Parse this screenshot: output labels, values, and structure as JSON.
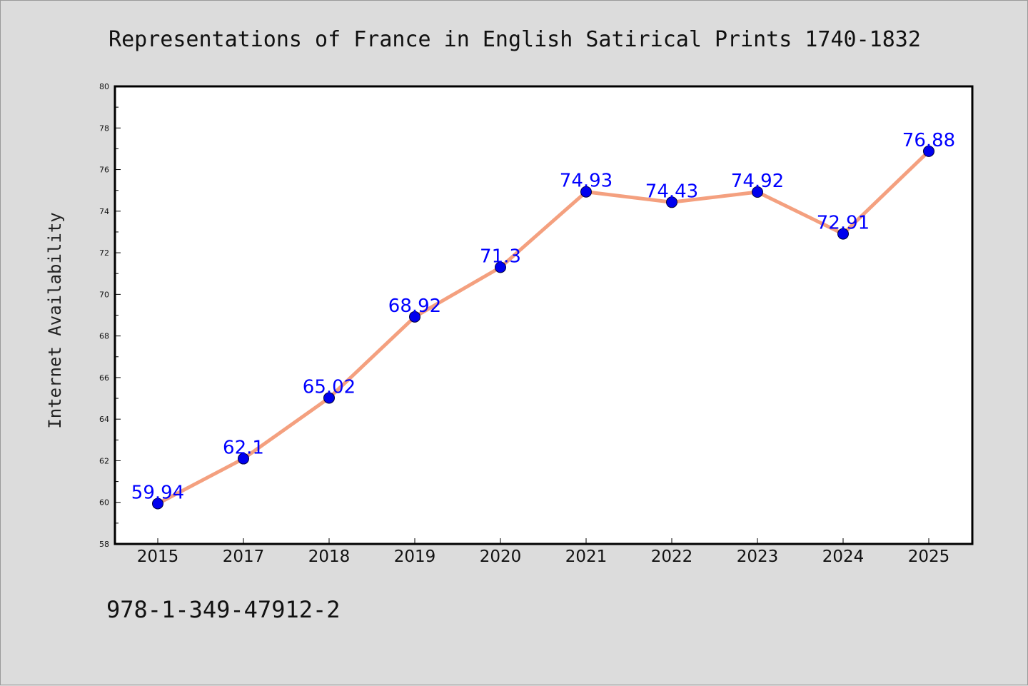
{
  "chart_data": {
    "type": "line",
    "title": "Representations of France in English Satirical Prints 1740-1832",
    "xlabel": "",
    "ylabel": "Internet Availability",
    "categories": [
      "2015",
      "2017",
      "2018",
      "2019",
      "2020",
      "2021",
      "2022",
      "2023",
      "2024",
      "2025"
    ],
    "series": [
      {
        "values": [
          59.94,
          62.1,
          65.02,
          68.92,
          71.3,
          74.93,
          74.43,
          74.92,
          72.91,
          76.88
        ],
        "data_labels": [
          "59.94",
          "62.1",
          "65.02",
          "68.92",
          "71.3",
          "74.93",
          "74.43",
          "74.92",
          "72.91",
          "76.88"
        ]
      }
    ],
    "ylim": [
      58,
      80
    ],
    "yticks": [
      "58",
      "60",
      "62",
      "64",
      "66",
      "68",
      "70",
      "72",
      "74",
      "76",
      "78",
      "80"
    ],
    "grid": false,
    "legend": "none",
    "colors": {
      "line": "#f4a07f",
      "marker": "#0000ee",
      "marker_edge": "#00003a",
      "data_label": "#0000ff",
      "background": "#dcdcdc",
      "plot_background": "#ffffff"
    }
  },
  "footer": {
    "isbn": "978-1-349-47912-2"
  }
}
